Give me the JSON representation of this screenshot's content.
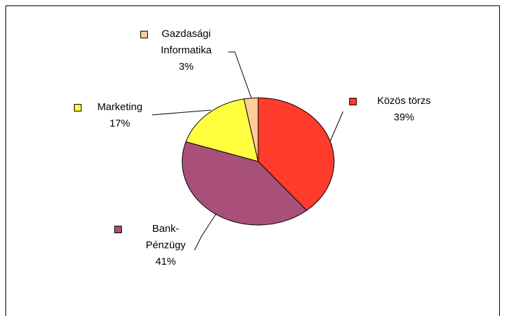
{
  "chart_data": {
    "type": "pie",
    "categories": [
      "Közös törzs",
      "Bank-Pénzügy",
      "Marketing",
      "Gazdasági Informatika"
    ],
    "values": [
      39,
      41,
      17,
      3
    ],
    "value_labels": [
      "39%",
      "41%",
      "17%",
      "3%"
    ],
    "colors": [
      "#ff3b2b",
      "#a9507a",
      "#ffff40",
      "#ffcc99"
    ]
  }
}
